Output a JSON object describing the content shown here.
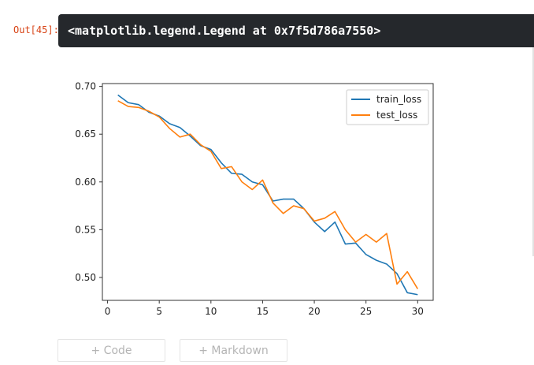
{
  "output": {
    "prompt": "Out[45]:",
    "text": "<matplotlib.legend.Legend at 0x7f5d786a7550>"
  },
  "cell_actions": {
    "add_code": "+ Code",
    "add_markdown": "+ Markdown"
  },
  "chart_data": {
    "type": "line",
    "title": "",
    "xlabel": "",
    "ylabel": "",
    "xlim": [
      -0.5,
      31.5
    ],
    "ylim": [
      0.476,
      0.703
    ],
    "x_ticks": [
      0,
      5,
      10,
      15,
      20,
      25,
      30
    ],
    "y_ticks": [
      0.5,
      0.55,
      0.6,
      0.65,
      0.7
    ],
    "y_tick_labels": [
      "0.50",
      "0.55",
      "0.60",
      "0.65",
      "0.70"
    ],
    "legend_position": "top-right",
    "x": [
      1,
      2,
      3,
      4,
      5,
      6,
      7,
      8,
      9,
      10,
      11,
      12,
      13,
      14,
      15,
      16,
      17,
      18,
      19,
      20,
      21,
      22,
      23,
      24,
      25,
      26,
      27,
      28,
      29,
      30
    ],
    "series": [
      {
        "name": "train_loss",
        "color": "#1f77b4",
        "values": [
          0.691,
          0.683,
          0.681,
          0.673,
          0.669,
          0.661,
          0.657,
          0.648,
          0.638,
          0.634,
          0.62,
          0.609,
          0.608,
          0.6,
          0.597,
          0.58,
          0.582,
          0.582,
          0.572,
          0.558,
          0.548,
          0.558,
          0.535,
          0.536,
          0.524,
          0.518,
          0.514,
          0.504,
          0.484,
          0.482
        ]
      },
      {
        "name": "test_loss",
        "color": "#ff7f0e",
        "values": [
          0.685,
          0.679,
          0.678,
          0.674,
          0.668,
          0.656,
          0.647,
          0.65,
          0.639,
          0.632,
          0.614,
          0.616,
          0.6,
          0.592,
          0.602,
          0.578,
          0.567,
          0.575,
          0.572,
          0.559,
          0.562,
          0.569,
          0.55,
          0.537,
          0.545,
          0.537,
          0.546,
          0.493,
          0.506,
          0.488
        ]
      }
    ]
  }
}
